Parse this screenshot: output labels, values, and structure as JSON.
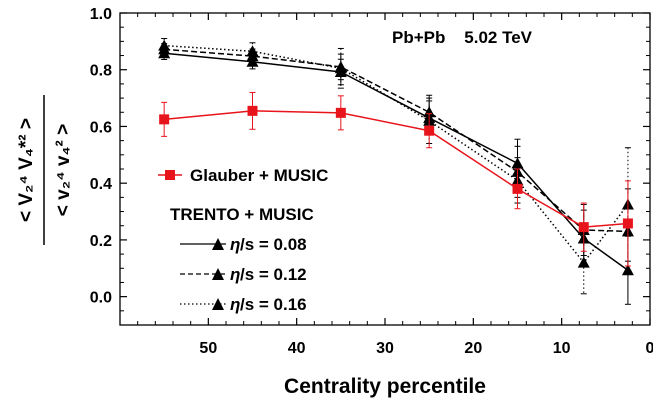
{
  "chart_data": {
    "type": "line",
    "annotation": "Pb+Pb    5.02 TeV",
    "xlabel": "Centrality percentile",
    "ylabel_numerator": "< V₂⁴ V₄*² >",
    "ylabel_denominator": "< v₂⁴ v₄² >",
    "xlim": [
      0,
      60
    ],
    "x_reversed": true,
    "ylim": [
      -0.1,
      1.0
    ],
    "xticks": [
      "50",
      "40",
      "30",
      "20",
      "10",
      "0"
    ],
    "xtick_values": [
      50,
      40,
      30,
      20,
      10,
      0
    ],
    "yticks": [
      "0.0",
      "0.2",
      "0.4",
      "0.6",
      "0.8",
      "1.0"
    ],
    "ytick_values": [
      0.0,
      0.2,
      0.4,
      0.6,
      0.8,
      1.0
    ],
    "legend_group_title": "TRENTO + MUSIC",
    "series": [
      {
        "name": "Glauber + MUSIC",
        "color": "#e8141c",
        "marker": "square",
        "dash": "solid",
        "x": [
          55,
          45,
          35,
          25,
          15,
          7.5,
          2.5
        ],
        "y": [
          0.625,
          0.655,
          0.648,
          0.585,
          0.38,
          0.245,
          0.258
        ],
        "err": [
          0.06,
          0.065,
          0.06,
          0.06,
          0.07,
          0.085,
          0.15
        ]
      },
      {
        "name": "/s = 0.08",
        "color": "#000000",
        "marker": "triangle",
        "dash": "solid",
        "x": [
          55,
          45,
          35,
          25,
          15,
          7.5,
          2.5
        ],
        "y": [
          0.858,
          0.828,
          0.792,
          0.63,
          0.47,
          0.205,
          0.093
        ],
        "err": [
          0.022,
          0.025,
          0.045,
          0.06,
          0.085,
          0.1,
          0.12
        ]
      },
      {
        "name": "/s = 0.12",
        "color": "#000000",
        "marker": "triangle",
        "dash": "dashed",
        "x": [
          55,
          45,
          35,
          25,
          15,
          7.5,
          2.5
        ],
        "y": [
          0.872,
          0.848,
          0.81,
          0.65,
          0.44,
          0.235,
          0.23
        ],
        "err": [
          0.02,
          0.025,
          0.045,
          0.06,
          0.09,
          0.09,
          0.15
        ]
      },
      {
        "name": "/s = 0.16",
        "color": "#000000",
        "marker": "triangle",
        "dash": "dotted",
        "x": [
          55,
          45,
          35,
          25,
          15,
          7.5,
          2.5
        ],
        "y": [
          0.885,
          0.865,
          0.805,
          0.62,
          0.41,
          0.12,
          0.325
        ],
        "err": [
          0.025,
          0.03,
          0.07,
          0.08,
          0.08,
          0.11,
          0.2
        ]
      }
    ],
    "eta_symbol": "η"
  }
}
